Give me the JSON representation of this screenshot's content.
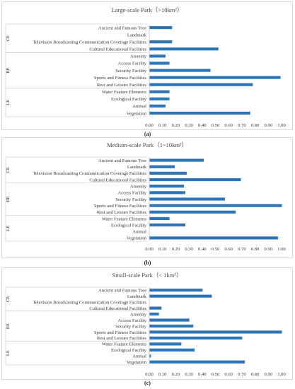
{
  "chart_data": [
    {
      "type": "bar",
      "orientation": "horizontal",
      "title": "Large-scale Park（>10km²）",
      "caption": "(a)",
      "categories": [
        "Ancient and Famous Tree",
        "Landmark",
        "Television Broadcasting Communication Coverage Facilities",
        "Cultural Educational Facilities",
        "Amenity",
        "Access Facility",
        "Security Facility",
        "Sports and Fitness Facilities",
        "Rest and Leisure Facilities",
        "Water Feature Elements",
        "Ecological Facility",
        "Animal",
        "Vegetation"
      ],
      "groups": [
        {
          "name": "CE",
          "count": 4
        },
        {
          "name": "RE",
          "count": 5
        },
        {
          "name": "LE",
          "count": 4
        }
      ],
      "values": [
        0.17,
        0.0,
        0.17,
        0.52,
        0.12,
        0.15,
        0.46,
        0.99,
        0.78,
        0.15,
        0.15,
        0.12,
        0.76
      ],
      "xlim": [
        0,
        1
      ],
      "xticks": [
        "0.00",
        "0.10",
        "0.20",
        "0.30",
        "0.40",
        "0.50",
        "0.60",
        "0.70",
        "0.80",
        "0.90",
        "1.00"
      ],
      "bar_color": "#2e75b6",
      "grid": false
    },
    {
      "type": "bar",
      "orientation": "horizontal",
      "title": "Medium-scale Park（1~10km²）",
      "caption": "(b)",
      "categories": [
        "Ancient and Famous Tree",
        "Landmark",
        "Television Broadcasting Communication Coverage Facilities",
        "Cultural Educational Facilities",
        "Amenity",
        "Access Facility",
        "Security Facility",
        "Sports and Fitness Facilities",
        "Rest and Leisure Facilities",
        "Water Feature Elements",
        "Ecological Facility",
        "Animal",
        "Vegetation"
      ],
      "groups": [
        {
          "name": "CE",
          "count": 4
        },
        {
          "name": "RE",
          "count": 5
        },
        {
          "name": "LE",
          "count": 4
        }
      ],
      "values": [
        0.41,
        0.19,
        0.28,
        0.69,
        0.26,
        0.27,
        0.57,
        1.0,
        0.65,
        0.15,
        0.27,
        0.0,
        0.97
      ],
      "xlim": [
        0,
        1
      ],
      "xticks": [
        "0.00",
        "0.10",
        "0.20",
        "0.30",
        "0.40",
        "0.50",
        "0.60",
        "0.70",
        "0.80",
        "0.90",
        "1.00"
      ],
      "bar_color": "#2e75b6",
      "grid": false
    },
    {
      "type": "bar",
      "orientation": "horizontal",
      "title": "Small-scale Park（< 1km²）",
      "caption": "(c)",
      "categories": [
        "Ancient and Famous Tree",
        "Landmark",
        "Television Broadcasting Communication Coverage Facilities",
        "Cultural Educational Facilities",
        "Amenity",
        "Access Facility",
        "Security Facility",
        "Sports and Fitness Facilities",
        "Rest and Leisure Facilities",
        "Water Feature Elements",
        "Ecological Facility",
        "Animal",
        "Vegetation"
      ],
      "groups": [
        {
          "name": "CE",
          "count": 4
        },
        {
          "name": "RE",
          "count": 5
        },
        {
          "name": "LE",
          "count": 4
        }
      ],
      "values": [
        0.4,
        0.47,
        0.0,
        0.09,
        0.07,
        0.3,
        0.33,
        1.0,
        0.7,
        0.24,
        0.34,
        0.01,
        0.72
      ],
      "xlim": [
        0,
        1
      ],
      "xticks": [
        "0.00",
        "0.10",
        "0.20",
        "0.30",
        "0.40",
        "0.50",
        "0.60",
        "0.70",
        "0.80",
        "0.90",
        "1.00"
      ],
      "bar_color": "#2e75b6",
      "grid": false
    }
  ]
}
